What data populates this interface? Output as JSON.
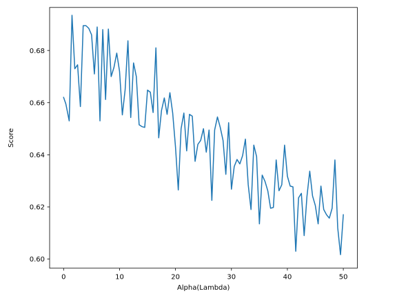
{
  "chart_data": {
    "type": "line",
    "title": "",
    "xlabel": "Alpha(Lambda)",
    "ylabel": "Score",
    "xlim": [
      -2.5,
      52.5
    ],
    "ylim": [
      0.5965,
      0.6965
    ],
    "xticks": [
      0,
      10,
      20,
      30,
      40,
      50
    ],
    "xtick_labels": [
      "0",
      "10",
      "20",
      "30",
      "40",
      "50"
    ],
    "yticks": [
      0.6,
      0.62,
      0.64,
      0.66,
      0.68
    ],
    "ytick_labels": [
      "0.60",
      "0.62",
      "0.64",
      "0.66",
      "0.68"
    ],
    "grid": false,
    "series": [
      {
        "color": "#1f77b4",
        "x": [
          0.0,
          0.4,
          1.0,
          1.5,
          2.0,
          2.5,
          3.0,
          3.5,
          4.0,
          4.5,
          5.0,
          5.5,
          6.0,
          6.5,
          7.0,
          7.5,
          8.0,
          8.5,
          9.0,
          9.5,
          10.0,
          10.5,
          11.0,
          11.5,
          12.0,
          12.5,
          13.0,
          13.5,
          14.0,
          14.5,
          15.0,
          15.5,
          16.0,
          16.5,
          17.0,
          17.5,
          18.0,
          18.5,
          19.0,
          19.5,
          20.0,
          20.5,
          21.0,
          21.5,
          22.0,
          22.5,
          23.0,
          23.5,
          24.0,
          24.5,
          25.0,
          25.5,
          26.0,
          26.5,
          27.0,
          27.5,
          28.0,
          28.5,
          29.0,
          29.5,
          30.0,
          30.5,
          31.0,
          31.5,
          32.0,
          32.5,
          33.0,
          33.5,
          34.0,
          34.5,
          35.0,
          35.5,
          36.0,
          36.5,
          37.0,
          37.5,
          38.0,
          38.5,
          39.0,
          39.5,
          40.0,
          40.5,
          41.0,
          41.5,
          42.0,
          42.5,
          43.0,
          43.5,
          44.0,
          44.5,
          45.0,
          45.5,
          46.0,
          46.5,
          47.0,
          47.5,
          48.0,
          48.5,
          49.0,
          49.5,
          50.0
        ],
        "y": [
          0.662,
          0.6595,
          0.653,
          0.6935,
          0.673,
          0.6745,
          0.6585,
          0.6895,
          0.6895,
          0.6885,
          0.686,
          0.671,
          0.689,
          0.653,
          0.688,
          0.6612,
          0.6882,
          0.67,
          0.6735,
          0.679,
          0.672,
          0.6553,
          0.665,
          0.6837,
          0.6543,
          0.6752,
          0.67,
          0.6515,
          0.6508,
          0.6505,
          0.6648,
          0.664,
          0.6562,
          0.681,
          0.6465,
          0.657,
          0.6618,
          0.6555,
          0.6638,
          0.656,
          0.643,
          0.6265,
          0.65,
          0.656,
          0.6415,
          0.6555,
          0.6548,
          0.6375,
          0.644,
          0.6455,
          0.65,
          0.641,
          0.6495,
          0.6225,
          0.6495,
          0.6545,
          0.6505,
          0.6455,
          0.6325,
          0.6523,
          0.6268,
          0.6355,
          0.6382,
          0.6365,
          0.6397,
          0.646,
          0.6285,
          0.619,
          0.6437,
          0.6393,
          0.6135,
          0.6322,
          0.6298,
          0.6262,
          0.6195,
          0.6198,
          0.638,
          0.6262,
          0.6285,
          0.6437,
          0.6318,
          0.628,
          0.6277,
          0.603,
          0.6235,
          0.6252,
          0.609,
          0.624,
          0.6337,
          0.6242,
          0.6205,
          0.6135,
          0.628,
          0.619,
          0.617,
          0.6157,
          0.6195,
          0.638,
          0.612,
          0.6017,
          0.617
        ]
      }
    ]
  }
}
